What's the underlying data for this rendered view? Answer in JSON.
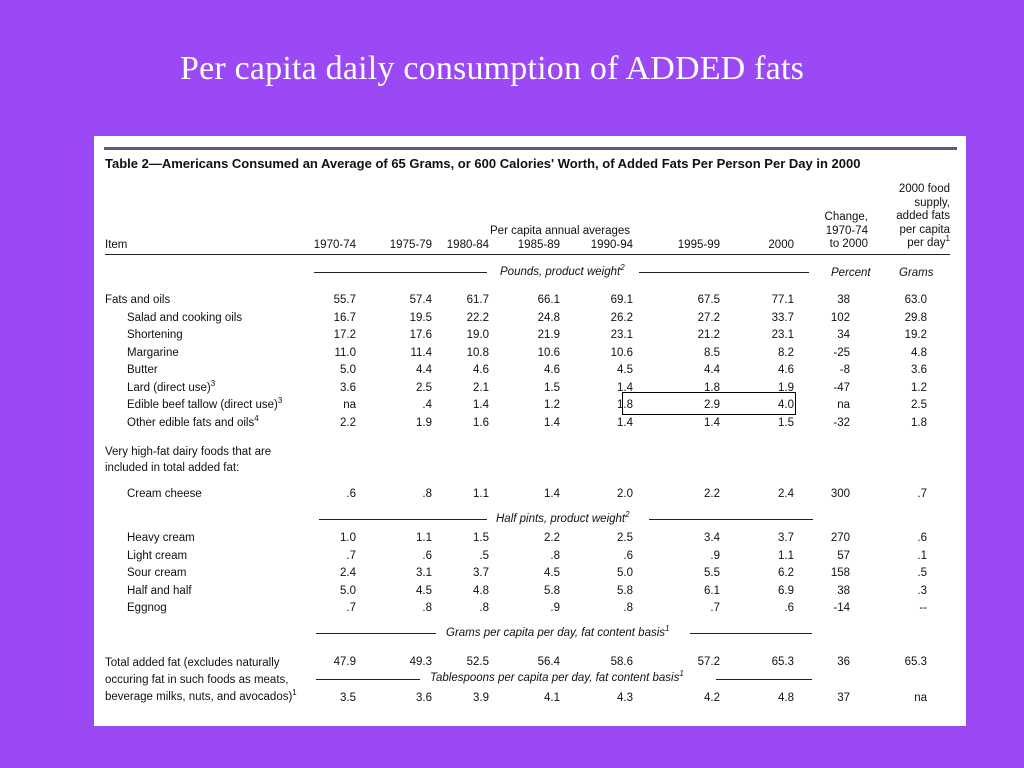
{
  "slide_title": "Per capita daily consumption of ADDED fats",
  "table": {
    "title": "Table 2—Americans Consumed an Average of 65 Grams, or 600 Calories' Worth, of Added Fats Per Person Per Day in 2000",
    "header": {
      "item": "Item",
      "group_label": "Per capita annual averages",
      "periods": [
        "1970-74",
        "1975-79",
        "1980-84",
        "1985-89",
        "1990-94",
        "1995-99",
        "2000"
      ],
      "change_label": [
        "Change,",
        "1970-74",
        "to 2000"
      ],
      "food_supply_label": [
        "2000 food",
        "supply,",
        "added fats",
        "per capita",
        "per day"
      ],
      "food_supply_note": "1"
    },
    "units": {
      "pounds": "Pounds, product weight",
      "pounds_note": "2",
      "percent": "Percent",
      "grams": "Grams",
      "half_pints": "Half pints, product weight",
      "half_pints_note": "2",
      "grams_per_day": "Grams per capita per day, fat content basis",
      "grams_per_day_note": "1",
      "tablespoons": "Tablespoons per capita per day, fat content basis",
      "tablespoons_note": "1"
    },
    "fats_rows": [
      {
        "label": "Fats and oils",
        "note": "",
        "values": [
          "55.7",
          "57.4",
          "61.7",
          "66.1",
          "69.1",
          "67.5",
          "77.1"
        ],
        "change": "38",
        "grams": "63.0"
      },
      {
        "label": "Salad and cooking oils",
        "note": "",
        "values": [
          "16.7",
          "19.5",
          "22.2",
          "24.8",
          "26.2",
          "27.2",
          "33.7"
        ],
        "change": "102",
        "grams": "29.8"
      },
      {
        "label": "Shortening",
        "note": "",
        "values": [
          "17.2",
          "17.6",
          "19.0",
          "21.9",
          "23.1",
          "21.2",
          "23.1"
        ],
        "change": "34",
        "grams": "19.2"
      },
      {
        "label": "Margarine",
        "note": "",
        "values": [
          "11.0",
          "11.4",
          "10.8",
          "10.6",
          "10.6",
          "8.5",
          "8.2"
        ],
        "change": "-25",
        "grams": "4.8"
      },
      {
        "label": "Butter",
        "note": "",
        "values": [
          "5.0",
          "4.4",
          "4.6",
          "4.6",
          "4.5",
          "4.4",
          "4.6"
        ],
        "change": "-8",
        "grams": "3.6"
      },
      {
        "label": "Lard (direct use)",
        "note": "3",
        "values": [
          "3.6",
          "2.5",
          "2.1",
          "1.5",
          "1.4",
          "1.8",
          "1.9"
        ],
        "change": "-47",
        "grams": "1.2"
      },
      {
        "label": "Edible beef tallow (direct use)",
        "note": "3",
        "values": [
          "na",
          ".4",
          "1.4",
          "1.2",
          "1.8",
          "2.9",
          "4.0"
        ],
        "change": "na",
        "grams": "2.5"
      },
      {
        "label": "Other edible fats and oils",
        "note": "4",
        "values": [
          "2.2",
          "1.9",
          "1.6",
          "1.4",
          "1.4",
          "1.4",
          "1.5"
        ],
        "change": "-32",
        "grams": "1.8"
      }
    ],
    "dairy_heading": [
      "Very high-fat dairy foods that are",
      "included in total added fat:"
    ],
    "cream_cheese": {
      "label": "Cream cheese",
      "values": [
        ".6",
        ".8",
        "1.1",
        "1.4",
        "2.0",
        "2.2",
        "2.4"
      ],
      "change": "300",
      "grams": ".7"
    },
    "dairy_rows": [
      {
        "label": "Heavy cream",
        "values": [
          "1.0",
          "1.1",
          "1.5",
          "2.2",
          "2.5",
          "3.4",
          "3.7"
        ],
        "change": "270",
        "grams": ".6"
      },
      {
        "label": "Light cream",
        "values": [
          ".7",
          ".6",
          ".5",
          ".8",
          ".6",
          ".9",
          "1.1"
        ],
        "change": "57",
        "grams": ".1"
      },
      {
        "label": "Sour cream",
        "values": [
          "2.4",
          "3.1",
          "3.7",
          "4.5",
          "5.0",
          "5.5",
          "6.2"
        ],
        "change": "158",
        "grams": ".5"
      },
      {
        "label": "Half and half",
        "values": [
          "5.0",
          "4.5",
          "4.8",
          "5.8",
          "5.8",
          "6.1",
          "6.9"
        ],
        "change": "38",
        "grams": ".3"
      },
      {
        "label": "Eggnog",
        "values": [
          ".7",
          ".8",
          ".8",
          ".9",
          ".8",
          ".7",
          ".6"
        ],
        "change": "-14",
        "grams": "--"
      }
    ],
    "total_label": [
      "Total added fat (excludes naturally",
      "occuring fat in such foods as meats,",
      "beverage milks, nuts, and avocados)"
    ],
    "total_note": "1",
    "total_grams": {
      "values": [
        "47.9",
        "49.3",
        "52.5",
        "56.4",
        "58.6",
        "57.2",
        "65.3"
      ],
      "change": "36",
      "grams": "65.3"
    },
    "total_tbsp": {
      "values": [
        "3.5",
        "3.6",
        "3.9",
        "4.1",
        "4.3",
        "4.2",
        "4.8"
      ],
      "change": "37",
      "grams": "na"
    }
  }
}
